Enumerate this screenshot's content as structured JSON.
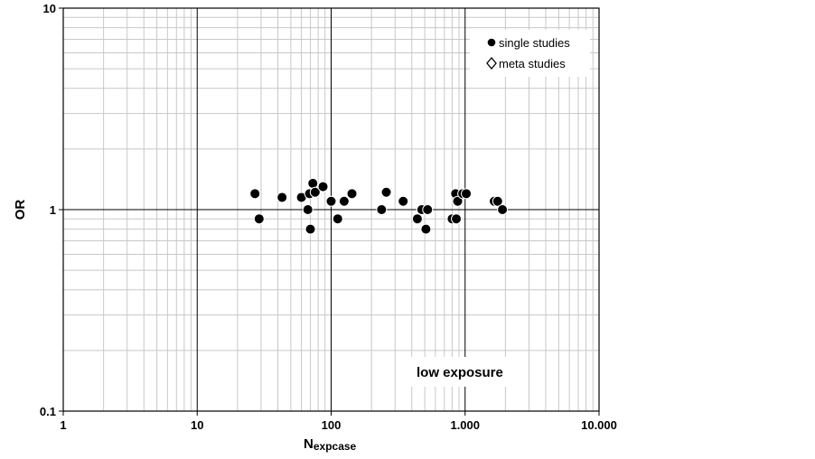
{
  "chart_data": {
    "type": "scatter",
    "title": "",
    "xlabel_main": "N",
    "xlabel_sub": "expcase",
    "ylabel": "OR",
    "xscale": "log",
    "yscale": "log",
    "xlim": [
      1,
      10000
    ],
    "ylim": [
      0.1,
      10
    ],
    "x_tick_values": [
      1,
      10,
      100,
      1000,
      10000
    ],
    "x_tick_labels": [
      "1",
      "10",
      "100",
      "1.000",
      "10.000"
    ],
    "y_tick_values": [
      0.1,
      1,
      10
    ],
    "y_tick_labels": [
      "0.1",
      "1",
      "10"
    ],
    "grid": true,
    "legend_position": "top-right",
    "legend": [
      {
        "label": "single studies",
        "marker": "filled-circle"
      },
      {
        "label": "meta studies",
        "marker": "open-diamond"
      }
    ],
    "annotation": "low exposure",
    "series": [
      {
        "name": "single studies",
        "marker": "filled-circle",
        "points": [
          {
            "x": 27,
            "y": 1.2
          },
          {
            "x": 29,
            "y": 0.9
          },
          {
            "x": 43,
            "y": 1.15
          },
          {
            "x": 60,
            "y": 1.15
          },
          {
            "x": 67,
            "y": 1.0
          },
          {
            "x": 69,
            "y": 1.2
          },
          {
            "x": 70,
            "y": 0.8
          },
          {
            "x": 73,
            "y": 1.35
          },
          {
            "x": 76,
            "y": 1.22
          },
          {
            "x": 87,
            "y": 1.3
          },
          {
            "x": 100,
            "y": 1.1
          },
          {
            "x": 112,
            "y": 0.9
          },
          {
            "x": 125,
            "y": 1.1
          },
          {
            "x": 143,
            "y": 1.2
          },
          {
            "x": 238,
            "y": 1.0
          },
          {
            "x": 258,
            "y": 1.22
          },
          {
            "x": 345,
            "y": 1.1
          },
          {
            "x": 440,
            "y": 0.9
          },
          {
            "x": 475,
            "y": 1.0
          },
          {
            "x": 510,
            "y": 0.8
          },
          {
            "x": 525,
            "y": 1.0
          },
          {
            "x": 800,
            "y": 0.9
          },
          {
            "x": 850,
            "y": 1.2
          },
          {
            "x": 860,
            "y": 0.9
          },
          {
            "x": 880,
            "y": 1.1
          },
          {
            "x": 960,
            "y": 1.2
          },
          {
            "x": 1020,
            "y": 1.2
          },
          {
            "x": 1650,
            "y": 1.1
          },
          {
            "x": 1750,
            "y": 1.1
          },
          {
            "x": 1900,
            "y": 1.0
          }
        ]
      },
      {
        "name": "meta studies",
        "marker": "open-diamond",
        "points": []
      }
    ]
  }
}
